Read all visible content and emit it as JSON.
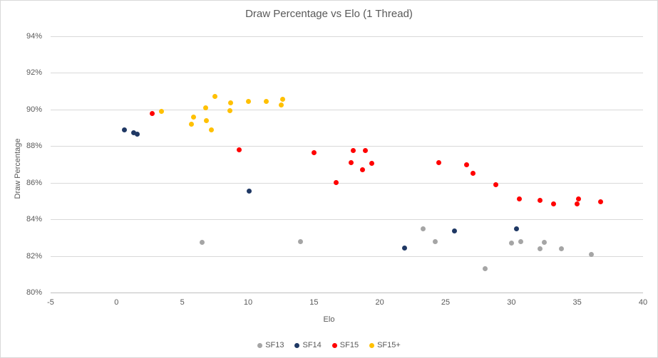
{
  "chart_data": {
    "type": "scatter",
    "title": "Draw Percentage vs Elo (1 Thread)",
    "xlabel": "Elo",
    "ylabel": "Draw Percentage",
    "xlim": [
      -5,
      40
    ],
    "ylim": [
      80,
      94
    ],
    "x_ticks": [
      "-5",
      "0",
      "5",
      "10",
      "15",
      "20",
      "25",
      "30",
      "35",
      "40"
    ],
    "x_tick_values": [
      -5,
      0,
      5,
      10,
      15,
      20,
      25,
      30,
      35,
      40
    ],
    "y_ticks": [
      {
        "value": 80,
        "label": "80%"
      },
      {
        "value": 82,
        "label": "82%"
      },
      {
        "value": 84,
        "label": "84%"
      },
      {
        "value": 86,
        "label": "86%"
      },
      {
        "value": 88,
        "label": "88%"
      },
      {
        "value": 90,
        "label": "90%"
      },
      {
        "value": 92,
        "label": "92%"
      },
      {
        "value": 94,
        "label": "94%"
      }
    ],
    "grid": "horizontal",
    "legend_position": "bottom-center",
    "series": [
      {
        "name": "SF13",
        "color": "#A5A5A5",
        "points": [
          [
            6.5,
            82.75
          ],
          [
            14.0,
            82.8
          ],
          [
            23.3,
            83.5
          ],
          [
            24.2,
            82.8
          ],
          [
            28.0,
            81.3
          ],
          [
            30.0,
            82.7
          ],
          [
            30.7,
            82.8
          ],
          [
            32.2,
            82.4
          ],
          [
            32.5,
            82.75
          ],
          [
            33.8,
            82.4
          ],
          [
            36.1,
            82.1
          ]
        ]
      },
      {
        "name": "SF14",
        "color": "#1F3864",
        "points": [
          [
            0.6,
            88.9
          ],
          [
            1.3,
            88.75
          ],
          [
            1.6,
            88.65
          ],
          [
            10.1,
            85.55
          ],
          [
            21.9,
            82.45
          ],
          [
            25.7,
            83.35
          ],
          [
            30.4,
            83.5
          ]
        ]
      },
      {
        "name": "SF15",
        "color": "#FF0000",
        "points": [
          [
            2.7,
            89.8
          ],
          [
            9.3,
            87.8
          ],
          [
            15.0,
            87.65
          ],
          [
            16.7,
            86.0
          ],
          [
            17.8,
            87.1
          ],
          [
            18.0,
            87.75
          ],
          [
            18.9,
            87.75
          ],
          [
            18.7,
            86.7
          ],
          [
            19.4,
            87.05
          ],
          [
            24.5,
            87.1
          ],
          [
            26.6,
            87.0
          ],
          [
            27.1,
            86.5
          ],
          [
            28.8,
            85.9
          ],
          [
            30.6,
            85.1
          ],
          [
            32.2,
            85.05
          ],
          [
            33.2,
            84.85
          ],
          [
            35.0,
            84.85
          ],
          [
            35.1,
            85.1
          ],
          [
            36.8,
            84.95
          ]
        ]
      },
      {
        "name": "SF15+",
        "color": "#FFC000",
        "points": [
          [
            3.4,
            89.9
          ],
          [
            5.7,
            89.2
          ],
          [
            5.85,
            89.6
          ],
          [
            6.8,
            90.1
          ],
          [
            6.85,
            89.4
          ],
          [
            7.2,
            88.9
          ],
          [
            7.5,
            90.7
          ],
          [
            8.6,
            89.95
          ],
          [
            8.7,
            90.35
          ],
          [
            10.0,
            90.45
          ],
          [
            11.4,
            90.45
          ],
          [
            12.5,
            90.25
          ],
          [
            12.6,
            90.55
          ]
        ]
      }
    ]
  },
  "colors": {
    "text": "#595959",
    "gridline": "#D9D9D9",
    "axis_line": "#BFBFBF",
    "border": "#D9D9D9",
    "background": "#FFFFFF"
  }
}
